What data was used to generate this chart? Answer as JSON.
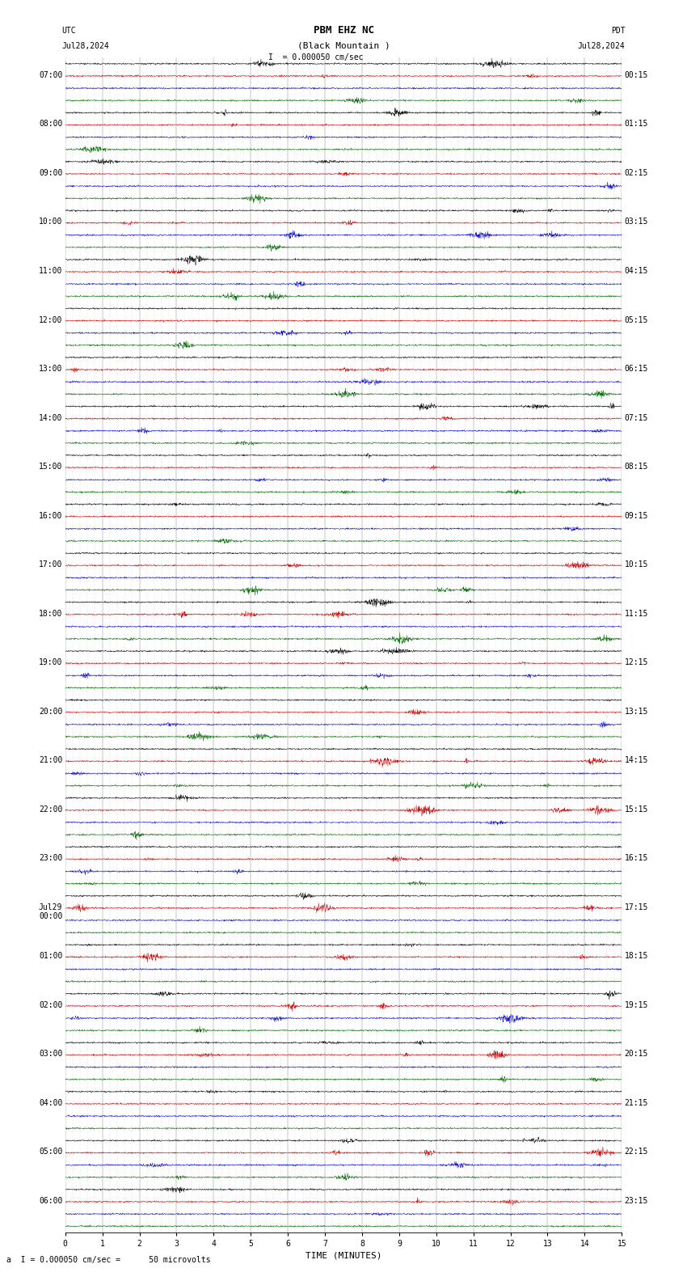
{
  "title_line1": "PBM EHZ NC",
  "title_line2": "(Black Mountain )",
  "scale_bar_label": "= 0.000050 cm/sec",
  "left_timezone": "UTC",
  "right_timezone": "PDT",
  "left_date_top": "Jul28,2024",
  "right_date_top": "Jul28,2024",
  "bottom_annotation": "a  I = 0.000050 cm/sec =      50 microvolts",
  "xlabel": "TIME (MINUTES)",
  "x_min": 0,
  "x_max": 15,
  "n_rows": 24,
  "left_labels": [
    "07:00",
    "08:00",
    "09:00",
    "10:00",
    "11:00",
    "12:00",
    "13:00",
    "14:00",
    "15:00",
    "16:00",
    "17:00",
    "18:00",
    "19:00",
    "20:00",
    "21:00",
    "22:00",
    "23:00",
    "00:00",
    "01:00",
    "02:00",
    "03:00",
    "04:00",
    "05:00",
    "06:00"
  ],
  "right_labels": [
    "00:15",
    "01:15",
    "02:15",
    "03:15",
    "04:15",
    "05:15",
    "06:15",
    "07:15",
    "08:15",
    "09:15",
    "10:15",
    "11:15",
    "12:15",
    "13:15",
    "14:15",
    "15:15",
    "16:15",
    "17:15",
    "18:15",
    "19:15",
    "20:15",
    "21:15",
    "22:15",
    "23:15"
  ],
  "day_change_row": 17,
  "sub_trace_colors": [
    "#000000",
    "#cc0000",
    "#0000cc",
    "#006600"
  ],
  "background_color": "#ffffff",
  "grid_color": "#888888",
  "minor_grid_color": "#cccccc",
  "noise_amplitude": 0.03,
  "n_sub_traces": 4,
  "fig_width": 8.5,
  "fig_height": 15.84,
  "dpi": 100,
  "font_size_title": 9,
  "font_size_labels": 7,
  "font_size_axis": 7,
  "font_size_annotation": 7
}
